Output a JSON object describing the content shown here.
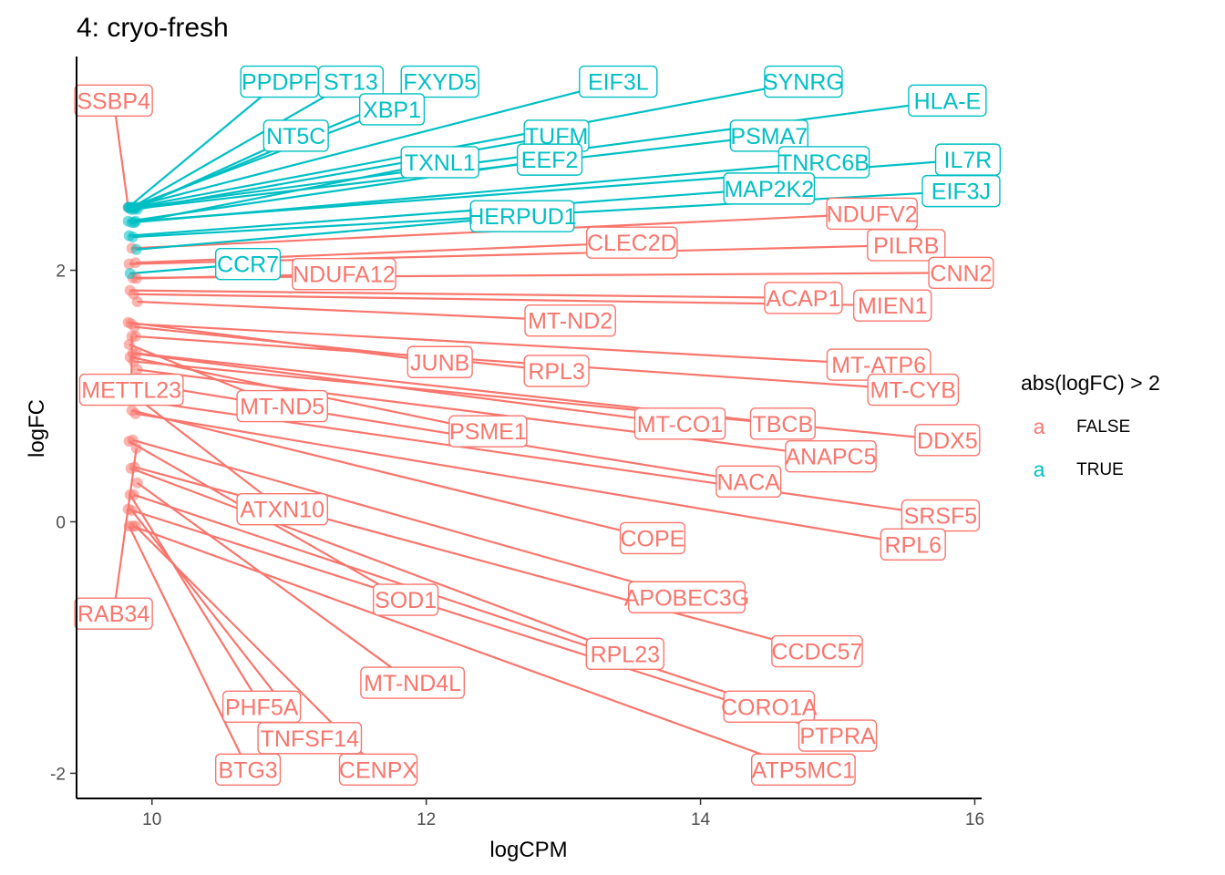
{
  "chart_data": {
    "type": "scatter",
    "title": "4: cryo-fresh",
    "xlabel": "logCPM",
    "ylabel": "logFC",
    "xlim": [
      9.45,
      16.05
    ],
    "ylim": [
      -2.2,
      3.7
    ],
    "x_ticks": [
      "10",
      "12",
      "14",
      "16"
    ],
    "y_ticks": [
      "-2",
      "0",
      "2"
    ],
    "grid": false,
    "legend": {
      "title": "abs(logFC) > 2",
      "position": "right",
      "key_glyph": "a",
      "entries": [
        {
          "label": "FALSE",
          "color": "#F8766D"
        },
        {
          "label": "TRUE",
          "color": "#00BFC4"
        }
      ]
    },
    "anchor": {
      "x": 9.86,
      "y": 1.9
    },
    "true_labels": [
      {
        "text": "PPDPF",
        "x": 10.93,
        "y": 3.5
      },
      {
        "text": "ST13",
        "x": 11.45,
        "y": 3.5
      },
      {
        "text": "FXYD5",
        "x": 12.1,
        "y": 3.5
      },
      {
        "text": "EIF3L",
        "x": 13.4,
        "y": 3.5
      },
      {
        "text": "SYNRG",
        "x": 14.75,
        "y": 3.5
      },
      {
        "text": "HLA-E",
        "x": 15.8,
        "y": 3.35
      },
      {
        "text": "XBP1",
        "x": 11.75,
        "y": 3.28
      },
      {
        "text": "NT5C",
        "x": 11.05,
        "y": 3.07
      },
      {
        "text": "TUFM",
        "x": 12.95,
        "y": 3.07
      },
      {
        "text": "PSMA7",
        "x": 14.5,
        "y": 3.07
      },
      {
        "text": "TXNL1",
        "x": 12.1,
        "y": 2.86
      },
      {
        "text": "EEF2",
        "x": 12.9,
        "y": 2.88
      },
      {
        "text": "TNRC6B",
        "x": 14.9,
        "y": 2.86
      },
      {
        "text": "IL7R",
        "x": 15.95,
        "y": 2.88
      },
      {
        "text": "MAP2K2",
        "x": 14.5,
        "y": 2.65
      },
      {
        "text": "EIF3J",
        "x": 15.9,
        "y": 2.63
      },
      {
        "text": "HERPUD1",
        "x": 12.7,
        "y": 2.43
      },
      {
        "text": "CCR7",
        "x": 10.7,
        "y": 2.05
      }
    ],
    "false_labels": [
      {
        "text": "SSBP4",
        "x": 9.72,
        "y": 3.35
      },
      {
        "text": "NDUFV2",
        "x": 15.25,
        "y": 2.45
      },
      {
        "text": "CLEC2D",
        "x": 13.5,
        "y": 2.22
      },
      {
        "text": "PILRB",
        "x": 15.5,
        "y": 2.2
      },
      {
        "text": "CNN2",
        "x": 15.9,
        "y": 1.98
      },
      {
        "text": "NDUFA12",
        "x": 11.4,
        "y": 1.97
      },
      {
        "text": "ACAP1",
        "x": 14.75,
        "y": 1.78
      },
      {
        "text": "MIEN1",
        "x": 15.4,
        "y": 1.72
      },
      {
        "text": "MT-ND2",
        "x": 13.05,
        "y": 1.6
      },
      {
        "text": "MT-ATP6",
        "x": 15.3,
        "y": 1.25
      },
      {
        "text": "RPL3",
        "x": 12.95,
        "y": 1.2
      },
      {
        "text": "JUNB",
        "x": 12.1,
        "y": 1.27
      },
      {
        "text": "METTL23",
        "x": 9.85,
        "y": 1.05
      },
      {
        "text": "MT-CYB",
        "x": 15.55,
        "y": 1.05
      },
      {
        "text": "MT-ND5",
        "x": 10.95,
        "y": 0.92
      },
      {
        "text": "MT-CO1",
        "x": 13.85,
        "y": 0.78
      },
      {
        "text": "TBCB",
        "x": 14.6,
        "y": 0.78
      },
      {
        "text": "PSME1",
        "x": 12.45,
        "y": 0.72
      },
      {
        "text": "DDX5",
        "x": 15.8,
        "y": 0.65
      },
      {
        "text": "ANAPC5",
        "x": 14.95,
        "y": 0.52
      },
      {
        "text": "NACA",
        "x": 14.35,
        "y": 0.32
      },
      {
        "text": "ATXN10",
        "x": 10.95,
        "y": 0.1
      },
      {
        "text": "SRSF5",
        "x": 15.75,
        "y": 0.05
      },
      {
        "text": "COPE",
        "x": 13.65,
        "y": -0.13
      },
      {
        "text": "RPL6",
        "x": 15.55,
        "y": -0.18
      },
      {
        "text": "SOD1",
        "x": 11.85,
        "y": -0.62
      },
      {
        "text": "APOBEC3G",
        "x": 13.9,
        "y": -0.6
      },
      {
        "text": "RAB34",
        "x": 9.72,
        "y": -0.73
      },
      {
        "text": "PHF5A",
        "x": 10.8,
        "y": -1.47
      },
      {
        "text": "CORO1A",
        "x": 14.5,
        "y": -1.47
      },
      {
        "text": "MT-ND4L",
        "x": 11.9,
        "y": -1.28
      },
      {
        "text": "RPL23",
        "x": 13.45,
        "y": -1.05
      },
      {
        "text": "CCDC57",
        "x": 14.85,
        "y": -1.03
      },
      {
        "text": "PTPRA",
        "x": 15.0,
        "y": -1.7
      },
      {
        "text": "TNFSF14",
        "x": 11.15,
        "y": -1.72
      },
      {
        "text": "CENPX",
        "x": 11.65,
        "y": -1.97
      },
      {
        "text": "BTG3",
        "x": 10.7,
        "y": -1.97
      },
      {
        "text": "ATP5MC1",
        "x": 14.75,
        "y": -1.97
      }
    ]
  }
}
